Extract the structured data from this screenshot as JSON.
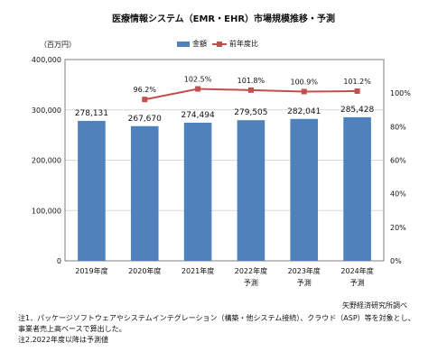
{
  "title": "医療情報システム（EMR・EHR）市場規模推移・予測",
  "unit_left": "（百万円）",
  "legend": {
    "bar_label": "金額",
    "line_label": "前年度比"
  },
  "source": "矢野経済研究所調べ",
  "notes": [
    "注1．パッケージソフトウェアやシステムインテグレーション（構築・他システム接続）、クラウド（ASP）等を対象とし、",
    "事業者売上高ベースで算出した。",
    "注2.2022年度以降は予測値"
  ],
  "colors": {
    "bar": "#4f81bd",
    "line": "#c0504d",
    "grid": "#d9d9d9",
    "axis": "#7f7f7f"
  },
  "chart_data": {
    "type": "bar",
    "categories": [
      [
        "2019年度"
      ],
      [
        "2020年度"
      ],
      [
        "2021年度"
      ],
      [
        "2022年度",
        "予測"
      ],
      [
        "2023年度",
        "予測"
      ],
      [
        "2024年度",
        "予測"
      ]
    ],
    "series": [
      {
        "name": "金額",
        "type": "bar",
        "axis": "left",
        "values": [
          278131,
          267670,
          274494,
          279505,
          282041,
          285428
        ],
        "labels": [
          "278,131",
          "267,670",
          "274,494",
          "279,505",
          "282,041",
          "285,428"
        ]
      },
      {
        "name": "前年度比",
        "type": "line",
        "axis": "right",
        "values": [
          null,
          96.2,
          102.5,
          101.8,
          100.9,
          101.2
        ],
        "labels": [
          "",
          "96.2%",
          "102.5%",
          "101.8%",
          "100.9%",
          "101.2%"
        ]
      }
    ],
    "ylim_left": [
      0,
      400000
    ],
    "yticks_left": [
      "0",
      "100,000",
      "200,000",
      "300,000",
      "400,000"
    ],
    "ylim_right": [
      0,
      120
    ],
    "yticks_right": [
      "0%",
      "20%",
      "40%",
      "60%",
      "80%",
      "100%"
    ],
    "grid": true,
    "legend_position": "top"
  }
}
